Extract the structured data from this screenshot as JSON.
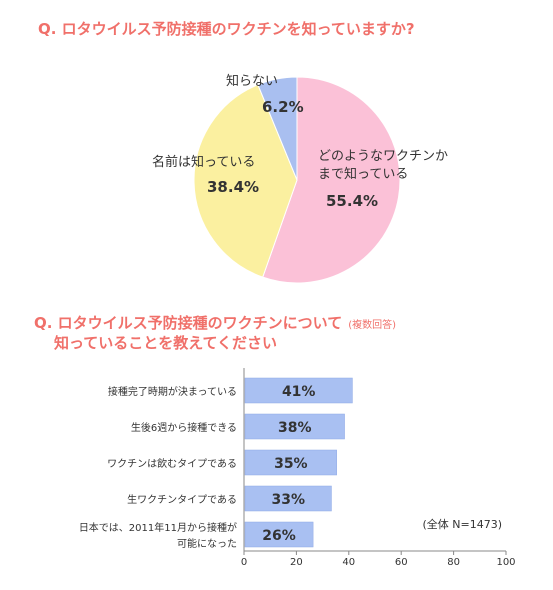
{
  "colors": {
    "title": "#f0706a",
    "pink": "#fbc1d7",
    "yellow": "#fbf0a0",
    "blue": "#a9bff0",
    "bar": "#a9c0f2"
  },
  "q1": {
    "title": "Q. ロタウイルス予防接種のワクチンを知っていますか?"
  },
  "q2": {
    "title_line1": "Q. ロタウイルス予防接種のワクチンについて",
    "title_note": "(複数回答)",
    "title_line2": "知っていることを教えてください"
  },
  "chart_data": [
    {
      "type": "pie",
      "slices": [
        {
          "label_lines": [
            "どのようなワクチンか",
            "まで知っている"
          ],
          "pct_label": "55.4%",
          "value": 55.4,
          "color": "#fbc1d7"
        },
        {
          "label_lines": [
            "名前は知っている"
          ],
          "pct_label": "38.4%",
          "value": 38.4,
          "color": "#fbf0a0"
        },
        {
          "label_lines": [
            "知らない"
          ],
          "pct_label": "6.2%",
          "value": 6.2,
          "color": "#a9bff0"
        }
      ]
    },
    {
      "type": "bar",
      "orientation": "horizontal",
      "categories": [
        [
          "接種完了時期が決まっている"
        ],
        [
          "生後6週から接種できる"
        ],
        [
          "ワクチンは飲むタイプである"
        ],
        [
          "生ワクチンタイプである"
        ],
        [
          "日本では、2011年11月から接種が",
          "可能になった"
        ]
      ],
      "values": [
        41,
        38,
        35,
        33,
        26
      ],
      "value_labels": [
        "41%",
        "38%",
        "35%",
        "33%",
        "26%"
      ],
      "xlim": [
        0,
        100
      ],
      "xticks": [
        0,
        20,
        40,
        60,
        80,
        100
      ],
      "note": "(全体 N=1473)"
    }
  ]
}
